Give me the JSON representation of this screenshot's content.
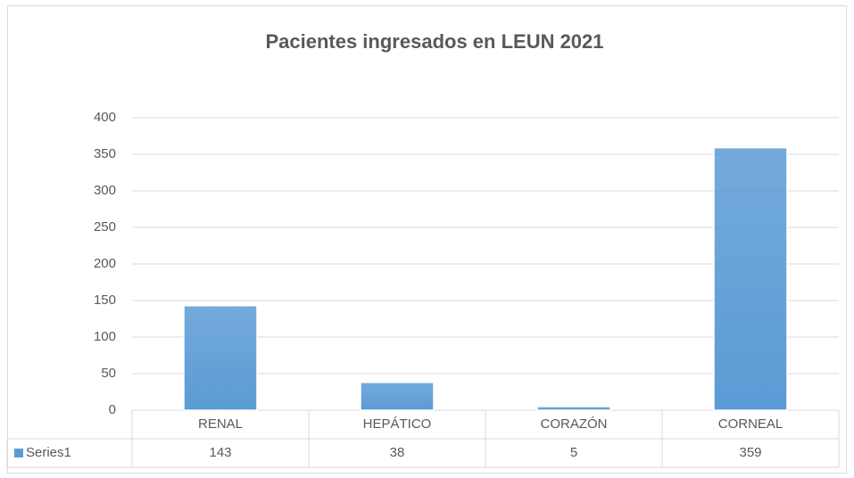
{
  "chart_data": {
    "type": "bar",
    "title": "Pacientes ingresados en LEUN 2021",
    "categories": [
      "RENAL",
      "HEPÁTICO",
      "CORAZÓN",
      "CORNEAL"
    ],
    "series": [
      {
        "name": "Series1",
        "color": "#5b9bd5",
        "values": [
          143,
          38,
          5,
          359
        ]
      }
    ],
    "ylim": [
      0,
      400
    ],
    "yticks": [
      0,
      50,
      100,
      150,
      200,
      250,
      300,
      350,
      400
    ],
    "grid": true,
    "data_table": true
  }
}
